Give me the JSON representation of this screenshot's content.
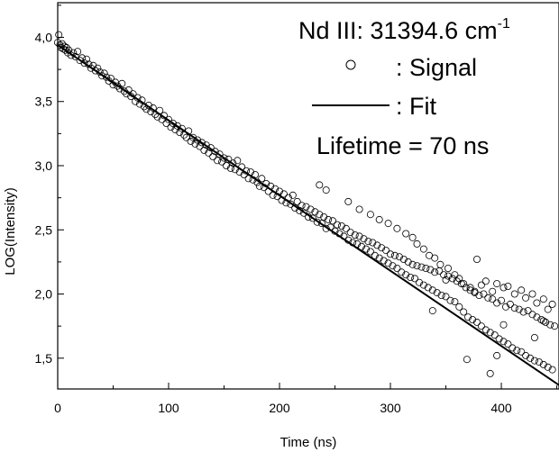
{
  "chart_data": {
    "type": "scatter",
    "xlabel": "Time (ns)",
    "ylabel": "LOG(Intensity)",
    "xlim": [
      0,
      452
    ],
    "ylim": [
      1.26,
      4.27
    ],
    "x_ticks": [
      0,
      100,
      200,
      300,
      400
    ],
    "y_ticks": [
      1.5,
      2.0,
      2.5,
      3.0,
      3.5,
      4.0
    ],
    "x_tick_labels": [
      "0",
      "100",
      "200",
      "300",
      "400"
    ],
    "y_tick_labels": [
      "1,5",
      "2,0",
      "2,5",
      "3,0",
      "3,5",
      "4,0"
    ],
    "title_main": "Nd III: 31394.6 cm",
    "title_sup": "-1",
    "legend": [
      {
        "marker": "open-circle",
        "label": ": Signal"
      },
      {
        "marker": "solid-line",
        "label": ": Fit"
      }
    ],
    "annotation": "Lifetime = 70 ns",
    "legend_position": "top-right",
    "grid": false,
    "colors": {
      "marks": "#000000",
      "background": "#ffffff"
    },
    "series": [
      {
        "name": "Signal",
        "type": "scatter",
        "marker": "open-circle",
        "points": [
          [
            0,
            3.96
          ],
          [
            1,
            4.02
          ],
          [
            2,
            3.94
          ],
          [
            3,
            3.92
          ],
          [
            4,
            3.95
          ],
          [
            5,
            3.91
          ],
          [
            6,
            3.93
          ],
          [
            7,
            3.9
          ],
          [
            8,
            3.92
          ],
          [
            9,
            3.88
          ],
          [
            10,
            3.9
          ],
          [
            12,
            3.86
          ],
          [
            14,
            3.88
          ],
          [
            16,
            3.85
          ],
          [
            18,
            3.89
          ],
          [
            20,
            3.82
          ],
          [
            22,
            3.84
          ],
          [
            24,
            3.8
          ],
          [
            26,
            3.83
          ],
          [
            28,
            3.79
          ],
          [
            30,
            3.76
          ],
          [
            32,
            3.78
          ],
          [
            34,
            3.74
          ],
          [
            36,
            3.76
          ],
          [
            38,
            3.73
          ],
          [
            40,
            3.7
          ],
          [
            42,
            3.72
          ],
          [
            44,
            3.69
          ],
          [
            46,
            3.66
          ],
          [
            48,
            3.68
          ],
          [
            50,
            3.63
          ],
          [
            52,
            3.65
          ],
          [
            54,
            3.62
          ],
          [
            56,
            3.6
          ],
          [
            58,
            3.64
          ],
          [
            60,
            3.58
          ],
          [
            62,
            3.56
          ],
          [
            64,
            3.59
          ],
          [
            66,
            3.54
          ],
          [
            68,
            3.56
          ],
          [
            70,
            3.5
          ],
          [
            72,
            3.53
          ],
          [
            74,
            3.48
          ],
          [
            76,
            3.51
          ],
          [
            78,
            3.46
          ],
          [
            80,
            3.44
          ],
          [
            82,
            3.47
          ],
          [
            84,
            3.42
          ],
          [
            86,
            3.45
          ],
          [
            88,
            3.4
          ],
          [
            90,
            3.38
          ],
          [
            92,
            3.43
          ],
          [
            94,
            3.36
          ],
          [
            96,
            3.39
          ],
          [
            98,
            3.33
          ],
          [
            100,
            3.36
          ],
          [
            102,
            3.3
          ],
          [
            104,
            3.33
          ],
          [
            106,
            3.28
          ],
          [
            108,
            3.31
          ],
          [
            110,
            3.26
          ],
          [
            112,
            3.29
          ],
          [
            114,
            3.24
          ],
          [
            116,
            3.22
          ],
          [
            118,
            3.27
          ],
          [
            120,
            3.19
          ],
          [
            122,
            3.22
          ],
          [
            124,
            3.17
          ],
          [
            126,
            3.2
          ],
          [
            128,
            3.15
          ],
          [
            130,
            3.18
          ],
          [
            132,
            3.12
          ],
          [
            134,
            3.16
          ],
          [
            136,
            3.1
          ],
          [
            138,
            3.14
          ],
          [
            140,
            3.07
          ],
          [
            142,
            3.11
          ],
          [
            144,
            3.04
          ],
          [
            146,
            3.09
          ],
          [
            148,
            3.03
          ],
          [
            150,
            3.06
          ],
          [
            152,
            3.0
          ],
          [
            154,
            3.05
          ],
          [
            156,
            2.98
          ],
          [
            158,
            3.02
          ],
          [
            160,
            2.97
          ],
          [
            162,
            3.04
          ],
          [
            164,
            2.95
          ],
          [
            166,
            2.99
          ],
          [
            168,
            2.93
          ],
          [
            170,
            2.96
          ],
          [
            172,
            2.9
          ],
          [
            174,
            2.95
          ],
          [
            176,
            2.89
          ],
          [
            178,
            2.93
          ],
          [
            180,
            2.87
          ],
          [
            182,
            2.84
          ],
          [
            184,
            2.9
          ],
          [
            186,
            2.83
          ],
          [
            188,
            2.86
          ],
          [
            190,
            2.8
          ],
          [
            192,
            2.84
          ],
          [
            194,
            2.77
          ],
          [
            196,
            2.82
          ],
          [
            198,
            2.76
          ],
          [
            200,
            2.8
          ],
          [
            202,
            2.73
          ],
          [
            204,
            2.78
          ],
          [
            206,
            2.71
          ],
          [
            208,
            2.75
          ],
          [
            210,
            2.7
          ],
          [
            212,
            2.77
          ],
          [
            214,
            2.67
          ],
          [
            216,
            2.72
          ],
          [
            218,
            2.65
          ],
          [
            220,
            2.69
          ],
          [
            222,
            2.63
          ],
          [
            224,
            2.68
          ],
          [
            226,
            2.6
          ],
          [
            228,
            2.66
          ],
          [
            230,
            2.59
          ],
          [
            232,
            2.64
          ],
          [
            234,
            2.56
          ],
          [
            236,
            2.62
          ],
          [
            238,
            2.55
          ],
          [
            240,
            2.6
          ],
          [
            242,
            2.51
          ],
          [
            244,
            2.58
          ],
          [
            246,
            2.52
          ],
          [
            248,
            2.57
          ],
          [
            250,
            2.49
          ],
          [
            252,
            2.54
          ],
          [
            254,
            2.47
          ],
          [
            256,
            2.53
          ],
          [
            258,
            2.45
          ],
          [
            260,
            2.51
          ],
          [
            262,
            2.42
          ],
          [
            264,
            2.48
          ],
          [
            266,
            2.4
          ],
          [
            268,
            2.46
          ],
          [
            270,
            2.39
          ],
          [
            272,
            2.45
          ],
          [
            274,
            2.37
          ],
          [
            276,
            2.43
          ],
          [
            278,
            2.35
          ],
          [
            280,
            2.41
          ],
          [
            282,
            2.33
          ],
          [
            284,
            2.4
          ],
          [
            286,
            2.3
          ],
          [
            288,
            2.38
          ],
          [
            290,
            2.28
          ],
          [
            292,
            2.36
          ],
          [
            294,
            2.26
          ],
          [
            296,
            2.34
          ],
          [
            298,
            2.24
          ],
          [
            300,
            2.31
          ],
          [
            302,
            2.22
          ],
          [
            304,
            2.3
          ],
          [
            306,
            2.2
          ],
          [
            308,
            2.29
          ],
          [
            310,
            2.17
          ],
          [
            312,
            2.27
          ],
          [
            314,
            2.15
          ],
          [
            316,
            2.25
          ],
          [
            318,
            2.13
          ],
          [
            320,
            2.23
          ],
          [
            322,
            2.12
          ],
          [
            324,
            2.22
          ],
          [
            326,
            2.09
          ],
          [
            328,
            2.21
          ],
          [
            330,
            2.07
          ],
          [
            332,
            2.2
          ],
          [
            334,
            2.05
          ],
          [
            336,
            2.19
          ],
          [
            338,
            2.03
          ],
          [
            340,
            2.17
          ],
          [
            342,
            2.01
          ],
          [
            344,
            2.18
          ],
          [
            346,
            1.99
          ],
          [
            348,
            2.15
          ],
          [
            350,
            1.98
          ],
          [
            352,
            2.14
          ],
          [
            354,
            1.95
          ],
          [
            356,
            2.12
          ],
          [
            358,
            1.94
          ],
          [
            360,
            2.1
          ],
          [
            362,
            1.9
          ],
          [
            364,
            2.08
          ],
          [
            366,
            1.86
          ],
          [
            368,
            2.05
          ],
          [
            370,
            1.82
          ],
          [
            372,
            2.03
          ],
          [
            374,
            1.8
          ],
          [
            376,
            2.01
          ],
          [
            378,
            1.78
          ],
          [
            380,
            1.99
          ],
          [
            382,
            1.75
          ],
          [
            384,
            2.0
          ],
          [
            386,
            1.72
          ],
          [
            388,
            1.97
          ],
          [
            390,
            1.7
          ],
          [
            392,
            1.96
          ],
          [
            394,
            1.68
          ],
          [
            396,
            1.93
          ],
          [
            398,
            1.65
          ],
          [
            400,
            1.95
          ],
          [
            402,
            1.63
          ],
          [
            404,
            1.9
          ],
          [
            406,
            1.61
          ],
          [
            408,
            1.92
          ],
          [
            410,
            1.58
          ],
          [
            412,
            1.89
          ],
          [
            414,
            1.56
          ],
          [
            416,
            1.88
          ],
          [
            418,
            1.55
          ],
          [
            420,
            1.86
          ],
          [
            422,
            1.52
          ],
          [
            424,
            1.87
          ],
          [
            426,
            1.5
          ],
          [
            428,
            1.84
          ],
          [
            430,
            1.48
          ],
          [
            432,
            1.82
          ],
          [
            434,
            1.47
          ],
          [
            436,
            1.8
          ],
          [
            438,
            1.45
          ],
          [
            440,
            1.78
          ],
          [
            442,
            1.43
          ],
          [
            444,
            1.76
          ],
          [
            446,
            1.41
          ],
          [
            448,
            1.75
          ],
          [
            236,
            2.85
          ],
          [
            242,
            2.81
          ],
          [
            262,
            2.72
          ],
          [
            272,
            2.66
          ],
          [
            282,
            2.62
          ],
          [
            290,
            2.58
          ],
          [
            298,
            2.55
          ],
          [
            306,
            2.51
          ],
          [
            314,
            2.47
          ],
          [
            320,
            2.44
          ],
          [
            324,
            2.39
          ],
          [
            330,
            2.35
          ],
          [
            335,
            2.3
          ],
          [
            340,
            2.28
          ],
          [
            345,
            2.23
          ],
          [
            352,
            2.2
          ],
          [
            358,
            2.15
          ],
          [
            362,
            2.12
          ],
          [
            366,
            2.08
          ],
          [
            372,
            2.05
          ],
          [
            376,
            2.02
          ],
          [
            382,
            2.07
          ],
          [
            386,
            2.1
          ],
          [
            392,
            2.02
          ],
          [
            396,
            2.08
          ],
          [
            402,
            2.05
          ],
          [
            406,
            2.06
          ],
          [
            412,
            2.0
          ],
          [
            418,
            2.03
          ],
          [
            422,
            1.97
          ],
          [
            428,
            2.0
          ],
          [
            432,
            1.93
          ],
          [
            438,
            1.96
          ],
          [
            442,
            1.88
          ],
          [
            446,
            1.92
          ],
          [
            369,
            1.49
          ],
          [
            390,
            1.38
          ],
          [
            378,
            2.27
          ],
          [
            402,
            1.76
          ],
          [
            350,
            2.11
          ],
          [
            338,
            1.87
          ],
          [
            396,
            1.52
          ],
          [
            438,
            1.79
          ],
          [
            430,
            1.66
          ]
        ]
      },
      {
        "name": "Fit",
        "type": "line",
        "style": "solid",
        "points": [
          [
            0,
            3.94
          ],
          [
            452,
            1.29
          ]
        ]
      }
    ]
  }
}
